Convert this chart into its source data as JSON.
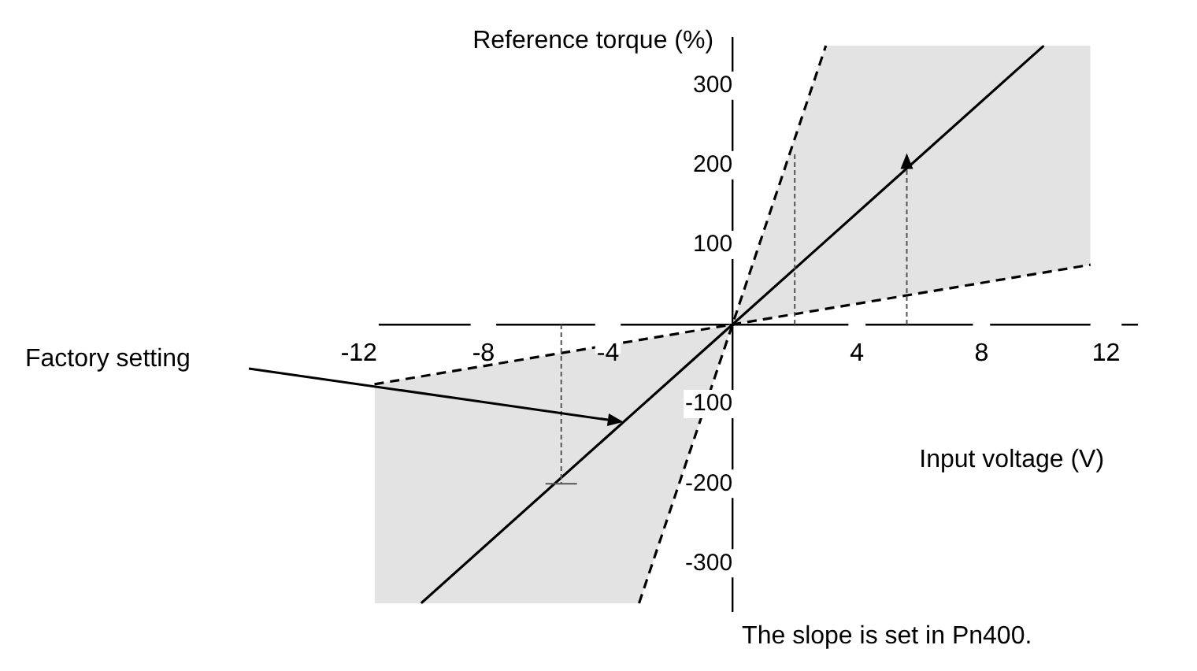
{
  "chart_data": {
    "type": "line",
    "xlabel": "Input voltage (V)",
    "ylabel": "Reference torque (%)",
    "series": [
      {
        "color": "#000000",
        "x": [
          -11.5,
          -10,
          -3,
          0,
          3,
          10,
          11.5
        ],
        "values": [
          null,
          -350,
          -105,
          0,
          105,
          350,
          null
        ],
        "lower": [
          -350,
          -350,
          -350,
          0,
          20,
          65,
          75
        ],
        "upper": [
          -75,
          -65,
          -20,
          0,
          350,
          350,
          350
        ]
      },
      {
        "color": "#000000",
        "x": [
          -3,
          3
        ],
        "values": [
          -350,
          350
        ],
        "line_style": "dashed"
      },
      {
        "color": "#000000",
        "x": [
          -11.5,
          11.5
        ],
        "values": [
          -75,
          75
        ],
        "line_style": "dashed"
      }
    ],
    "xlim": [
      -12.5,
      13
    ],
    "ylim": [
      -360,
      360
    ],
    "xticks": [
      -12,
      -8,
      -4,
      4,
      8,
      12
    ],
    "yticks": [
      -300,
      -200,
      -100,
      100,
      200,
      300
    ],
    "grid": false,
    "legend": false,
    "marker": "none",
    "line_style": "solid",
    "annotations": [
      "Factory setting",
      "The slope is set in Pn400."
    ]
  }
}
